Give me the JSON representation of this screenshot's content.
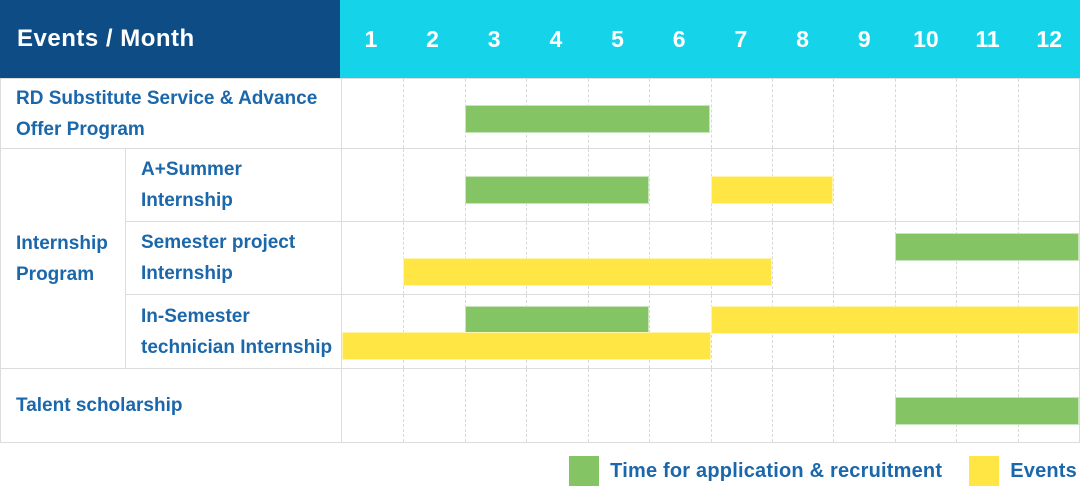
{
  "chart_data": {
    "type": "bar",
    "subtype": "gantt-table",
    "header_label": "Events / Month",
    "months": [
      "1",
      "2",
      "3",
      "4",
      "5",
      "6",
      "7",
      "8",
      "9",
      "10",
      "11",
      "12"
    ],
    "x_range": [
      1,
      12
    ],
    "group_label": "Internship Program",
    "rows": [
      {
        "label": "RD Substitute Service & Advance Offer Program",
        "group": null,
        "bars": [
          {
            "series": "application",
            "start_month": 3,
            "end_month": 6,
            "band": "center"
          }
        ]
      },
      {
        "label": "A+Summer Internship",
        "group": "Internship Program",
        "bars": [
          {
            "series": "application",
            "start_month": 3,
            "end_month": 5,
            "band": "center"
          },
          {
            "series": "events",
            "start_month": 7,
            "end_month": 8,
            "band": "center"
          }
        ]
      },
      {
        "label": "Semester project Internship",
        "group": "Internship Program",
        "bars": [
          {
            "series": "application",
            "start_month": 10,
            "end_month": 12,
            "band": "upper"
          },
          {
            "series": "events",
            "start_month": 2,
            "end_month": 7,
            "band": "lower"
          }
        ]
      },
      {
        "label": "In-Semester technician Internship",
        "group": "Internship Program",
        "bars": [
          {
            "series": "application",
            "start_month": 3,
            "end_month": 5,
            "band": "upper"
          },
          {
            "series": "events",
            "start_month": 7,
            "end_month": 12,
            "band": "upper"
          },
          {
            "series": "events",
            "start_month": 1,
            "end_month": 6,
            "band": "lower"
          }
        ]
      },
      {
        "label": "Talent scholarship",
        "group": null,
        "bars": [
          {
            "series": "application",
            "start_month": 10,
            "end_month": 12,
            "band": "center"
          }
        ]
      }
    ],
    "series": {
      "application": {
        "label": "Time for application & recruitment",
        "color": "#85c464"
      },
      "events": {
        "label": "Events",
        "color": "#ffe645"
      }
    },
    "legend": [
      {
        "series": "application",
        "label": "Time for application & recruitment"
      },
      {
        "series": "events",
        "label": "Events"
      }
    ],
    "colors": {
      "header_bg": "#0e4c86",
      "months_bg": "#15d3e8",
      "header_text": "#ffffff",
      "label_text": "#1b67ab",
      "grid_line": "#dcdcdc"
    }
  }
}
